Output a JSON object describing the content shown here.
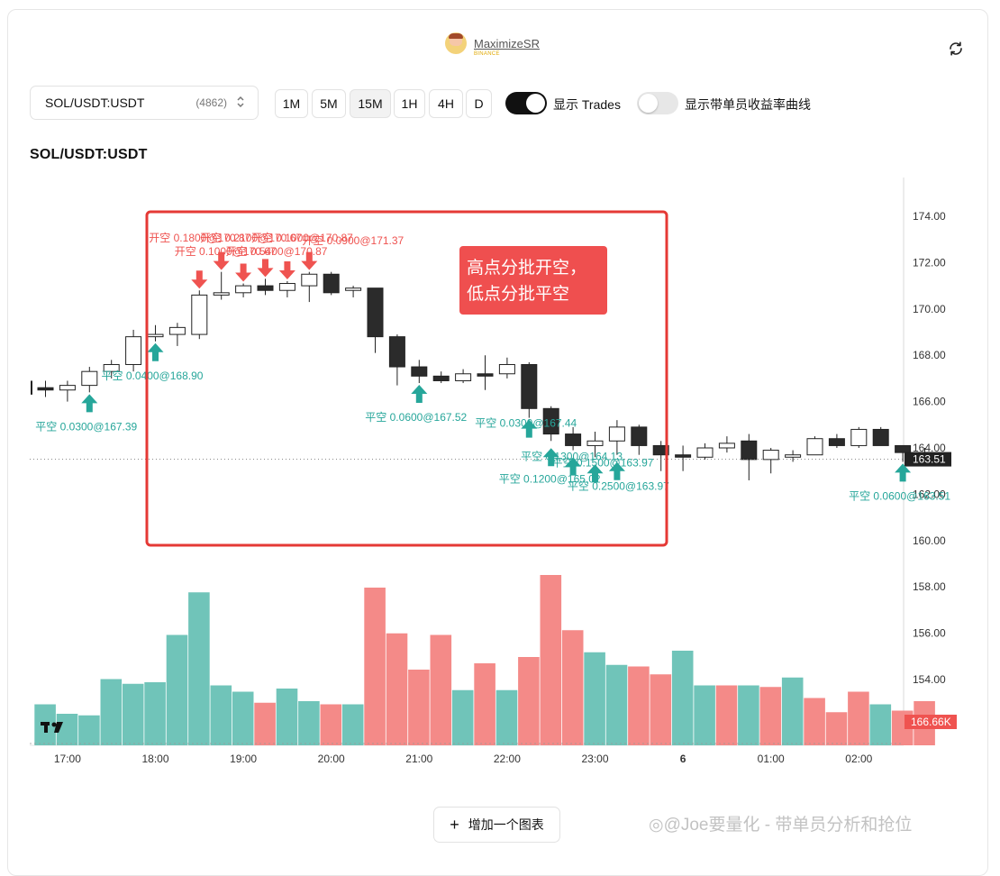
{
  "header": {
    "username": "MaximizeSR",
    "exchange_badge": "BINANCE",
    "avatar_icon": "avatar-icon",
    "refresh_icon": "refresh-icon"
  },
  "toolbar": {
    "symbol": "SOL/USDT:USDT",
    "symbol_count": "(4862)",
    "timeframes": [
      "1M",
      "5M",
      "15M",
      "1H",
      "4H",
      "D"
    ],
    "active_timeframe": "15M",
    "toggle_trades_label": "显示 Trades",
    "toggle_trades_on": true,
    "toggle_curve_label": "显示带单员收益率曲线",
    "toggle_curve_on": false
  },
  "chart_title": "SOL/USDT:USDT",
  "chart_data": {
    "type": "candlestick",
    "symbol": "SOL/USDT:USDT",
    "interval": "15M",
    "x_tick_labels": [
      "17:00",
      "18:00",
      "19:00",
      "20:00",
      "21:00",
      "22:00",
      "23:00",
      "6",
      "01:00",
      "02:00"
    ],
    "y_tick_labels": [
      "174.00",
      "172.00",
      "170.00",
      "168.00",
      "166.00",
      "164.00",
      "162.00",
      "160.00",
      "158.00",
      "156.00",
      "154.00"
    ],
    "ylim": [
      152.0,
      175.0
    ],
    "last_price": "163.51",
    "last_volume": "166.66K",
    "candles": [
      {
        "o": 166.6,
        "h": 166.9,
        "l": 166.2,
        "c": 166.5
      },
      {
        "o": 166.5,
        "h": 166.9,
        "l": 166.0,
        "c": 166.7
      },
      {
        "o": 166.7,
        "h": 167.5,
        "l": 166.4,
        "c": 167.3
      },
      {
        "o": 167.3,
        "h": 167.8,
        "l": 167.0,
        "c": 167.6
      },
      {
        "o": 167.6,
        "h": 169.1,
        "l": 167.3,
        "c": 168.8
      },
      {
        "o": 168.8,
        "h": 169.3,
        "l": 168.6,
        "c": 168.9
      },
      {
        "o": 168.9,
        "h": 169.4,
        "l": 168.4,
        "c": 169.2
      },
      {
        "o": 168.9,
        "h": 170.8,
        "l": 168.7,
        "c": 170.6
      },
      {
        "o": 170.6,
        "h": 171.6,
        "l": 170.4,
        "c": 170.7
      },
      {
        "o": 170.7,
        "h": 171.1,
        "l": 170.5,
        "c": 171.0
      },
      {
        "o": 171.0,
        "h": 171.3,
        "l": 170.6,
        "c": 170.8
      },
      {
        "o": 170.8,
        "h": 171.2,
        "l": 170.5,
        "c": 171.1
      },
      {
        "o": 171.0,
        "h": 171.6,
        "l": 170.3,
        "c": 171.5
      },
      {
        "o": 171.5,
        "h": 171.6,
        "l": 170.6,
        "c": 170.7
      },
      {
        "o": 170.8,
        "h": 171.0,
        "l": 170.5,
        "c": 170.9
      },
      {
        "o": 170.9,
        "h": 170.9,
        "l": 168.1,
        "c": 168.8
      },
      {
        "o": 168.8,
        "h": 168.9,
        "l": 166.7,
        "c": 167.5
      },
      {
        "o": 167.5,
        "h": 167.8,
        "l": 166.8,
        "c": 167.1
      },
      {
        "o": 167.1,
        "h": 167.3,
        "l": 166.8,
        "c": 166.9
      },
      {
        "o": 166.9,
        "h": 167.4,
        "l": 166.8,
        "c": 167.2
      },
      {
        "o": 167.2,
        "h": 168.0,
        "l": 166.5,
        "c": 167.1
      },
      {
        "o": 167.2,
        "h": 167.9,
        "l": 167.0,
        "c": 167.6
      },
      {
        "o": 167.6,
        "h": 167.7,
        "l": 165.3,
        "c": 165.7
      },
      {
        "o": 165.7,
        "h": 165.8,
        "l": 164.3,
        "c": 164.6
      },
      {
        "o": 164.6,
        "h": 164.9,
        "l": 163.9,
        "c": 164.1
      },
      {
        "o": 164.1,
        "h": 164.7,
        "l": 163.6,
        "c": 164.3
      },
      {
        "o": 164.3,
        "h": 165.2,
        "l": 163.7,
        "c": 164.9
      },
      {
        "o": 164.9,
        "h": 165.0,
        "l": 163.7,
        "c": 164.1
      },
      {
        "o": 164.1,
        "h": 164.3,
        "l": 163.0,
        "c": 163.7
      },
      {
        "o": 163.7,
        "h": 164.1,
        "l": 163.0,
        "c": 163.6
      },
      {
        "o": 163.6,
        "h": 164.2,
        "l": 163.5,
        "c": 164.0
      },
      {
        "o": 164.0,
        "h": 164.5,
        "l": 163.8,
        "c": 164.2
      },
      {
        "o": 164.3,
        "h": 164.6,
        "l": 162.6,
        "c": 163.5
      },
      {
        "o": 163.5,
        "h": 164.0,
        "l": 162.9,
        "c": 163.9
      },
      {
        "o": 163.6,
        "h": 163.9,
        "l": 163.4,
        "c": 163.7
      },
      {
        "o": 163.7,
        "h": 164.5,
        "l": 163.7,
        "c": 164.4
      },
      {
        "o": 164.4,
        "h": 164.6,
        "l": 164.0,
        "c": 164.1
      },
      {
        "o": 164.1,
        "h": 164.9,
        "l": 164.0,
        "c": 164.8
      },
      {
        "o": 164.8,
        "h": 164.9,
        "l": 164.1,
        "c": 164.1
      },
      {
        "o": 164.1,
        "h": 164.1,
        "l": 163.4,
        "c": 163.8
      },
      {
        "o": 163.8,
        "h": 164.0,
        "l": 163.5,
        "c": 163.51
      }
    ],
    "volume_direction": [
      "up",
      "up",
      "up",
      "up",
      "up",
      "up",
      "up",
      "up",
      "up",
      "up",
      "down",
      "up",
      "up",
      "down",
      "up",
      "down",
      "down",
      "down",
      "down",
      "up",
      "down",
      "up",
      "down",
      "down",
      "down",
      "up",
      "up",
      "down",
      "down",
      "up",
      "up",
      "down",
      "up",
      "down",
      "up",
      "down",
      "down",
      "down",
      "up",
      "down",
      "down"
    ],
    "volume_relative": [
      0.26,
      0.2,
      0.19,
      0.42,
      0.39,
      0.4,
      0.7,
      0.97,
      0.38,
      0.34,
      0.27,
      0.36,
      0.28,
      0.26,
      0.26,
      1.0,
      0.71,
      0.48,
      0.7,
      0.35,
      0.52,
      0.35,
      0.56,
      1.08,
      0.73,
      0.59,
      0.51,
      0.5,
      0.45,
      0.6,
      0.38,
      0.38,
      0.38,
      0.37,
      0.43,
      0.3,
      0.21,
      0.34,
      0.26,
      0.22,
      0.28
    ],
    "trades": [
      {
        "side": "close",
        "label": "平空 0.0300@167.39",
        "candle": 2
      },
      {
        "side": "close",
        "label": "平空 0.0400@168.90",
        "candle": 5
      },
      {
        "side": "open",
        "label": "开空 0.1800@170.87",
        "candle": 7
      },
      {
        "side": "open",
        "label": "开空 0.1000@170.67",
        "candle": 8
      },
      {
        "side": "open",
        "label": "开空 0.2100@170.67",
        "candle": 9
      },
      {
        "side": "open",
        "label": "开空 0.5400@170.87",
        "candle": 10
      },
      {
        "side": "open",
        "label": "开空 0.1000@170.87",
        "candle": 11
      },
      {
        "side": "open",
        "label": "开空 0.0900@171.37",
        "candle": 12
      },
      {
        "side": "close",
        "label": "平空 0.0600@167.52",
        "candle": 17
      },
      {
        "side": "close",
        "label": "平空 0.0300@167.44",
        "candle": 22
      },
      {
        "side": "close",
        "label": "平空 0.1200@165.02",
        "candle": 23
      },
      {
        "side": "close",
        "label": "平空 0.1300@164.13",
        "candle": 24
      },
      {
        "side": "close",
        "label": "平空 0.1500@163.97",
        "candle": 25
      },
      {
        "side": "close",
        "label": "平空 0.2500@163.97",
        "candle": 26
      },
      {
        "side": "close",
        "label": "平空 0.0600@163.51",
        "candle": 39
      }
    ],
    "annotation": "高点分批开空，\n低点分批平空",
    "colors": {
      "up": "#26a69a",
      "down": "#ef5350",
      "volume_up": "#70c4b9",
      "volume_down": "#f48a88",
      "candle_up_fill": "#ffffff",
      "candle_down_fill": "#2b2b2b",
      "annotation_bg": "#ef4f4f",
      "annotation_border": "#e53935"
    }
  },
  "add_chart_label": "增加一个图表",
  "watermark": "◎@Joe要量化 - 带单员分析和抢位"
}
